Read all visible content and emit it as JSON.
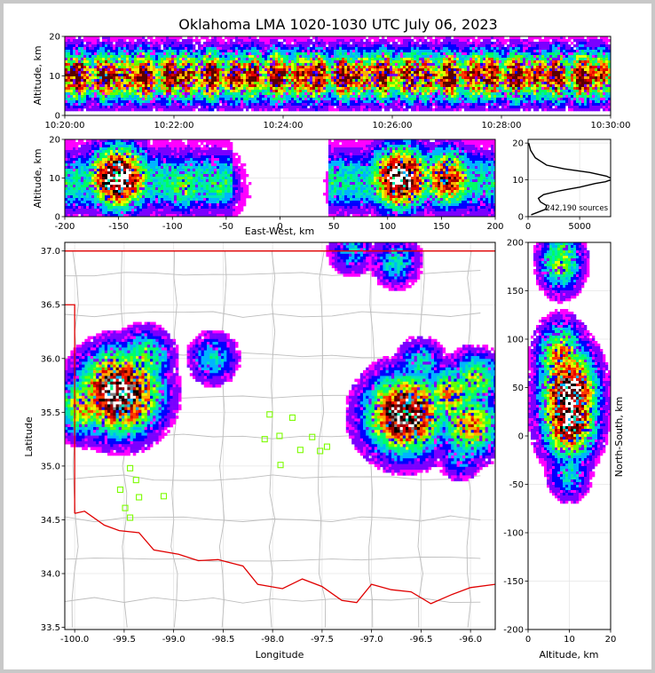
{
  "title": "Oklahoma LMA 1020-1030 UTC July 06, 2023",
  "colors": {
    "density_ramp": [
      "#ff00ff",
      "#7b00ff",
      "#0000ff",
      "#00b4ff",
      "#00e6b4",
      "#00ff64",
      "#64ff00",
      "#e6ff00",
      "#ffaa00",
      "#ff3c00",
      "#e60000",
      "#a00000",
      "#5a0000",
      "#000000",
      "#808080",
      "#ffffff"
    ],
    "state_boundary": "#e00000",
    "county_lines": "#bdbdbd",
    "stations": "#7cfc00"
  },
  "chart_data": [
    {
      "id": "time_height",
      "type": "heatmap",
      "xlabel": "",
      "ylabel": "Altitude, km",
      "xlim": [
        "10:20:00",
        "10:30:00"
      ],
      "ylim": [
        0,
        20
      ],
      "xticks": [
        "10:20:00",
        "10:22:00",
        "10:24:00",
        "10:26:00",
        "10:28:00",
        "10:30:00"
      ],
      "yticks": [
        "0",
        "10",
        "20"
      ],
      "intensity_peak_altitude_km": 10
    },
    {
      "id": "ew_height",
      "type": "heatmap",
      "xlabel": "East-West, km",
      "ylabel": "Altitude, km",
      "xlim": [
        -200,
        200
      ],
      "ylim": [
        0,
        20
      ],
      "xticks": [
        "-200",
        "-150",
        "-100",
        "-50",
        "0",
        "50",
        "100",
        "150",
        "200"
      ],
      "yticks": [
        "0",
        "10",
        "20"
      ],
      "cores": [
        {
          "x_km": -150,
          "z_km": 10,
          "level": 1.0
        },
        {
          "x_km": -90,
          "z_km": 8,
          "level": 0.45
        },
        {
          "x_km": -58,
          "z_km": 8,
          "level": 0.35
        },
        {
          "x_km": 112,
          "z_km": 10,
          "level": 1.0
        },
        {
          "x_km": 155,
          "z_km": 10,
          "level": 0.75
        },
        {
          "x_km": 70,
          "z_km": 8,
          "level": 0.3
        }
      ]
    },
    {
      "id": "altitude_histogram",
      "type": "line",
      "xlabel": "",
      "ylabel": "",
      "xlim": [
        0,
        8000
      ],
      "ylim": [
        0,
        21
      ],
      "xticks": [
        "0",
        "5000"
      ],
      "yticks": [
        "0",
        "10",
        "20"
      ],
      "annotation": "242,190 sources",
      "x": [
        300,
        1700,
        1800,
        1200,
        1000,
        1500,
        3000,
        5000,
        6500,
        7500,
        8200,
        7600,
        6000,
        3500,
        1800,
        700,
        250,
        60
      ],
      "y": [
        0.5,
        2,
        3,
        4,
        5,
        6,
        7,
        8,
        9,
        9.5,
        10.2,
        11,
        12,
        13,
        14,
        16,
        18,
        20
      ]
    },
    {
      "id": "plan_view",
      "type": "heatmap",
      "xlabel": "Longitude",
      "ylabel": "Latitude",
      "xlim": [
        -100.1,
        -95.75
      ],
      "ylim": [
        33.48,
        37.08
      ],
      "xticks": [
        "-100.0",
        "-99.5",
        "-99.0",
        "-98.5",
        "-98.0",
        "-97.5",
        "-97.0",
        "-96.5",
        "-96.0"
      ],
      "yticks": [
        "33.5",
        "34.0",
        "34.5",
        "35.0",
        "35.5",
        "36.0",
        "36.5",
        "37.0"
      ],
      "stations": [
        {
          "lon": -98.03,
          "lat": 35.48
        },
        {
          "lon": -97.8,
          "lat": 35.45
        },
        {
          "lon": -98.08,
          "lat": 35.25
        },
        {
          "lon": -97.93,
          "lat": 35.28
        },
        {
          "lon": -97.6,
          "lat": 35.27
        },
        {
          "lon": -97.72,
          "lat": 35.15
        },
        {
          "lon": -97.52,
          "lat": 35.14
        },
        {
          "lon": -97.45,
          "lat": 35.18
        },
        {
          "lon": -97.92,
          "lat": 35.01
        },
        {
          "lon": -99.44,
          "lat": 34.98
        },
        {
          "lon": -99.38,
          "lat": 34.87
        },
        {
          "lon": -99.54,
          "lat": 34.78
        },
        {
          "lon": -99.35,
          "lat": 34.71
        },
        {
          "lon": -99.1,
          "lat": 34.72
        },
        {
          "lon": -99.49,
          "lat": 34.61
        },
        {
          "lon": -99.44,
          "lat": 34.52
        }
      ],
      "cores": [
        {
          "lon": -99.55,
          "lat": 35.68,
          "level": 1.0
        },
        {
          "lon": -99.6,
          "lat": 35.85,
          "level": 0.6
        },
        {
          "lon": -99.9,
          "lat": 35.55,
          "level": 0.55
        },
        {
          "lon": -99.3,
          "lat": 36.0,
          "level": 0.45
        },
        {
          "lon": -98.6,
          "lat": 36.0,
          "level": 0.3
        },
        {
          "lon": -96.66,
          "lat": 35.48,
          "level": 0.95
        },
        {
          "lon": -96.2,
          "lat": 35.65,
          "level": 0.55
        },
        {
          "lon": -95.95,
          "lat": 35.8,
          "level": 0.45
        },
        {
          "lon": -96.0,
          "lat": 35.38,
          "level": 0.6
        },
        {
          "lon": -96.5,
          "lat": 35.95,
          "level": 0.3
        },
        {
          "lon": -96.1,
          "lat": 35.1,
          "level": 0.25
        },
        {
          "lon": -96.75,
          "lat": 36.9,
          "level": 0.3
        },
        {
          "lon": -97.2,
          "lat": 37.0,
          "level": 0.25
        }
      ]
    },
    {
      "id": "ns_altitude",
      "type": "heatmap",
      "xlabel": "Altitude, km",
      "ylabel": "North-South, km",
      "xlim": [
        0,
        20
      ],
      "ylim": [
        -200,
        200
      ],
      "xticks": [
        "0",
        "10",
        "20"
      ],
      "yticks": [
        "-200",
        "-150",
        "-100",
        "-50",
        "0",
        "50",
        "100",
        "150",
        "200"
      ],
      "cores": [
        {
          "z_km": 10,
          "y_km": 42,
          "level": 1.0
        },
        {
          "z_km": 10,
          "y_km": 22,
          "level": 0.95
        },
        {
          "z_km": 8,
          "y_km": 80,
          "level": 0.6
        },
        {
          "z_km": 8,
          "y_km": 180,
          "level": 0.45
        },
        {
          "z_km": 10,
          "y_km": -38,
          "level": 0.3
        }
      ]
    }
  ]
}
